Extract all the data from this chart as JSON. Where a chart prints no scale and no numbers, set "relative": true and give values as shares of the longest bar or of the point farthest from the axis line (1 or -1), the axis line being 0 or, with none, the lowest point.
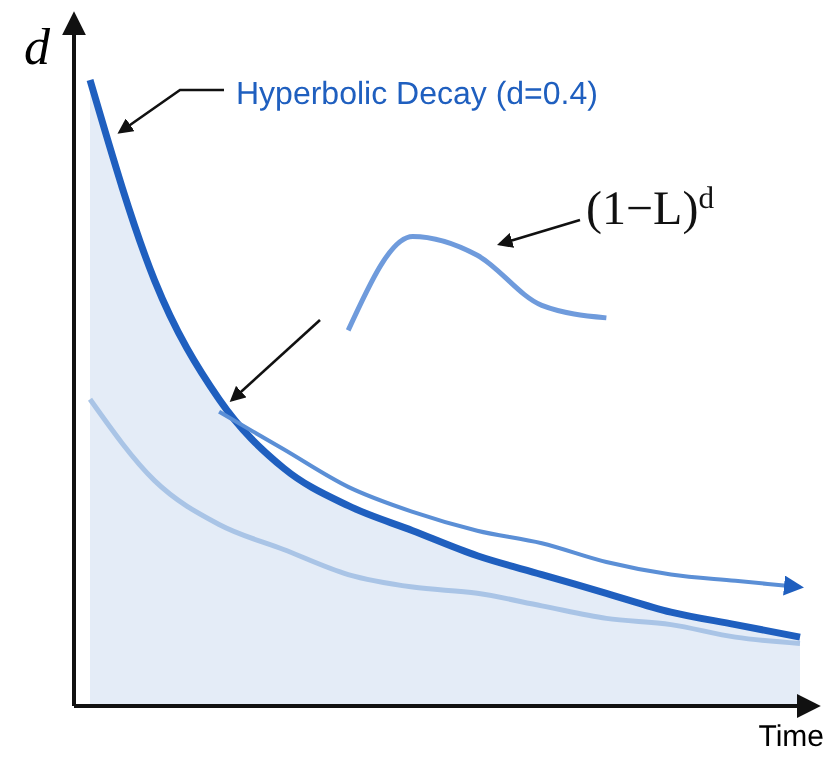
{
  "chart_data": {
    "type": "line",
    "relative": true,
    "xlabel": "Time",
    "ylabel": "d",
    "categories": [
      null,
      null,
      null,
      null,
      null,
      null,
      null,
      null,
      null,
      null,
      null,
      null
    ],
    "series": [
      {
        "type": "area",
        "color": "#1f5fbf",
        "values": [
          1,
          0.68,
          0.49,
          0.38,
          0.32,
          0.28,
          0.24,
          0.21,
          0.18,
          0.15,
          0.13,
          0.11
        ]
      },
      {
        "color": "#a9c4e6",
        "values": [
          0.49,
          0.36,
          0.29,
          0.25,
          0.21,
          0.19,
          0.18,
          0.16,
          0.14,
          0.13,
          0.11,
          0.1
        ]
      },
      {
        "color": "#5b8fd6",
        "values": [
          null,
          null,
          0.47,
          0.41,
          0.35,
          0.31,
          0.28,
          0.26,
          0.23,
          0.21,
          0.2,
          0.19
        ]
      },
      {
        "color": "#6f9bdc",
        "values": [
          null,
          null,
          null,
          null,
          0.6,
          0.75,
          0.72,
          0.64,
          0.62,
          null,
          null,
          null
        ]
      }
    ],
    "annotations": [
      "Hyperbolic Decay (d=0.4)",
      "(1−L)$^{d}$"
    ],
    "legend": false
  }
}
